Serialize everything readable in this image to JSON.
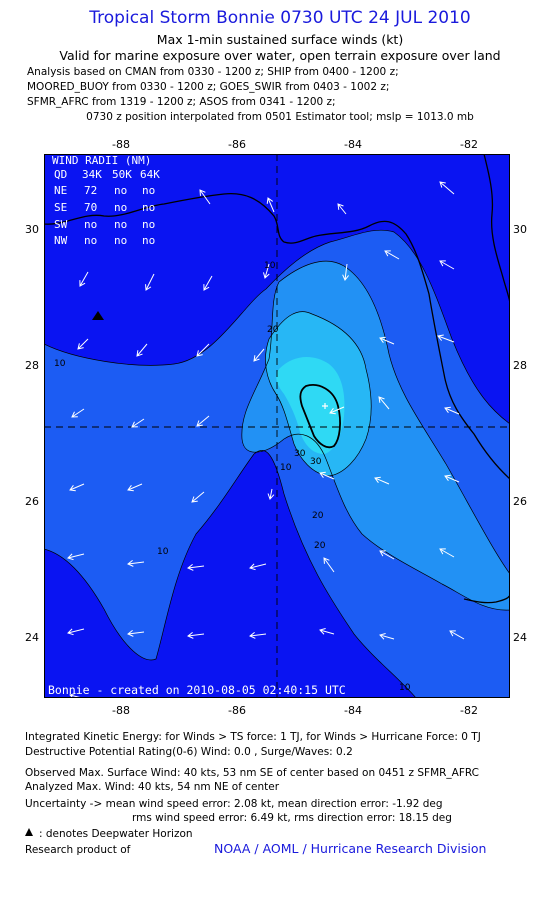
{
  "header": {
    "title": "Tropical Storm Bonnie 0730 UTC 24 JUL 2010",
    "subtitle1": "Max 1-min sustained surface winds (kt)",
    "subtitle2": "Valid for marine exposure over water, open terrain exposure over land",
    "meta": [
      "Analysis based on CMAN from 0330 - 1200 z; SHIP from 0400 - 1200 z;",
      "MOORED_BUOY from 0330 - 1200 z; GOES_SWIR from 0403 - 1002 z;",
      "SFMR_AFRC from 1319 - 1200 z; ASOS from 0341 - 1200 z;",
      "0730 z position interpolated from 0501 Estimator tool; mslp = 1013.0 mb"
    ]
  },
  "map": {
    "x_ticks": [
      "-88",
      "-86",
      "-84",
      "-82"
    ],
    "y_ticks": [
      "30",
      "28",
      "26",
      "24"
    ],
    "colors": {
      "ocean": "#0a14f2",
      "band10": "#1c5cf3",
      "band20": "#2291f4",
      "band30": "#27b7f5",
      "band40": "#2fd9f4"
    },
    "contour_labels": [
      "10",
      "10",
      "20",
      "20",
      "20",
      "30",
      "30",
      "10",
      "10",
      "10"
    ],
    "wind_radii": {
      "title": "WIND RADII (NM)",
      "header": [
        "QD",
        "34K",
        "50K",
        "64K"
      ],
      "rows": [
        [
          "NE",
          "72",
          "no",
          "no"
        ],
        [
          "SE",
          "70",
          "no",
          "no"
        ],
        [
          "SW",
          "no",
          "no",
          "no"
        ],
        [
          "NW",
          "no",
          "no",
          "no"
        ]
      ]
    },
    "credit": "Bonnie - created on 2010-08-05 02:40:15 UTC"
  },
  "footer": {
    "ike": "Integrated Kinetic Energy:  for Winds > TS force: 1 TJ,  for Winds > Hurricane Force: 0 TJ",
    "dpr": "Destructive Potential Rating(0-6)   Wind: 0.0 , Surge/Waves: 0.2",
    "observed": "Observed Max. Surface Wind: 40 kts, 53 nm SE of center based on 0451 z SFMR_AFRC",
    "analyzed": "Analyzed Max. Wind: 40 kts, 54 nm NE of center",
    "uncertainty1": "Uncertainty -> mean wind speed error: 2.08 kt,   mean direction error:  -1.92 deg",
    "uncertainty2": "rms wind speed error: 6.49 kt,   rms direction error: 18.15 deg",
    "deepwater": ": denotes Deepwater Horizon",
    "research": "Research product of",
    "org": "NOAA / AOML / Hurricane Research Division"
  }
}
